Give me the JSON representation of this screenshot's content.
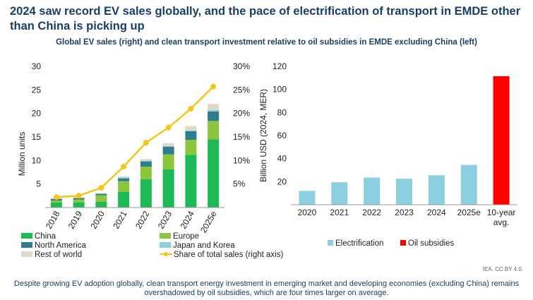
{
  "header": {
    "title": "2024 saw record EV sales globally, and the pace of electrification of transport in EMDE other than China is picking up",
    "subtitle": "Global EV sales (right) and clean transport investment relative to oil subsidies in EMDE excluding China (left)"
  },
  "footer": {
    "source": "IEA. CC BY 4.0.",
    "note": "Despite growing EV adoption globally, clean transport energy investment in emerging market and developing economies (excluding China) remains overshadowed by oil subsidies, which are four times larger on average."
  },
  "chart_data": [
    {
      "type": "bar",
      "stacked": true,
      "categories": [
        "2018",
        "2019",
        "2020",
        "2021",
        "2022",
        "2023",
        "2024",
        "2025e"
      ],
      "ylabel": "Million units",
      "ylim": [
        0,
        30
      ],
      "yticks": [
        "5",
        "10",
        "15",
        "20",
        "25",
        "30"
      ],
      "y2lim": [
        0,
        30
      ],
      "y2ticks": [
        "5%",
        "10%",
        "15%",
        "20%",
        "25%",
        "30%"
      ],
      "grid": false,
      "legend_position": "bottom",
      "series": [
        {
          "name": "China",
          "color": "#1db954",
          "values": [
            1.1,
            1.1,
            1.2,
            3.3,
            6.0,
            8.1,
            11.2,
            14.5
          ]
        },
        {
          "name": "Europe",
          "color": "#8cc63f",
          "values": [
            0.4,
            0.6,
            1.4,
            2.3,
            2.7,
            3.2,
            3.2,
            3.9
          ]
        },
        {
          "name": "North America",
          "color": "#2e7d8c",
          "values": [
            0.3,
            0.3,
            0.3,
            0.6,
            1.1,
            1.6,
            1.8,
            2.0
          ]
        },
        {
          "name": "Japan and Korea",
          "color": "#8ccfe0",
          "values": [
            0.1,
            0.1,
            0.1,
            0.2,
            0.2,
            0.2,
            0.2,
            0.3
          ]
        },
        {
          "name": "Rest of world",
          "color": "#ddd9c4",
          "values": [
            0.1,
            0.1,
            0.1,
            0.2,
            0.3,
            0.6,
            0.9,
            1.3
          ]
        }
      ],
      "line": {
        "name": "Share of total sales (right axis)",
        "color": "#f5c518",
        "values_percent": [
          2.2,
          2.5,
          4.2,
          8.7,
          13.8,
          17.0,
          21.0,
          25.7
        ]
      }
    },
    {
      "type": "bar",
      "categories": [
        "2020",
        "2021",
        "2022",
        "2023",
        "2024",
        "2025e",
        "10-year avg."
      ],
      "ylabel": "Billion USD (2024, MER)",
      "ylim": [
        0,
        120
      ],
      "yticks": [
        "20",
        "40",
        "60",
        "80",
        "100",
        "120"
      ],
      "grid": false,
      "legend_position": "bottom",
      "series": [
        {
          "name": "Electrification",
          "color": "#8ccfe0",
          "values": [
            12,
            19.5,
            23.5,
            22.5,
            25.5,
            34.5,
            null
          ]
        },
        {
          "name": "Oil subsidies",
          "color": "#ff0000",
          "values": [
            null,
            null,
            null,
            null,
            null,
            null,
            111.5
          ]
        }
      ]
    }
  ]
}
